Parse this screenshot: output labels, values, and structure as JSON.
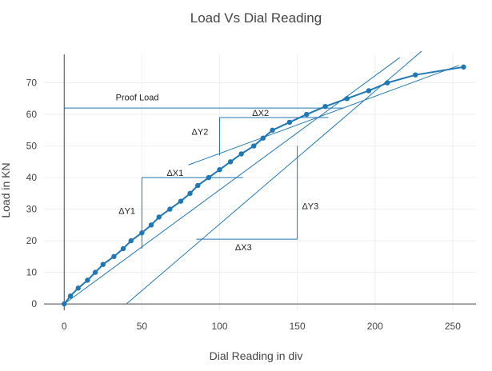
{
  "chart_data": {
    "type": "scatter",
    "title": "Load Vs Dial Reading",
    "xlabel": "Dial Reading in div",
    "ylabel": "Load in KN",
    "xlim": [
      -13,
      265
    ],
    "ylim": [
      -2,
      79
    ],
    "xticks": [
      0,
      50,
      100,
      150,
      200,
      250
    ],
    "yticks": [
      0,
      10,
      20,
      30,
      40,
      50,
      60,
      70
    ],
    "grid": true,
    "legend": "none",
    "colors": {
      "series": "#1f77b4",
      "lines": "#1f77b4",
      "grid": "#eeeeee",
      "axis": "#444444"
    },
    "series": [
      {
        "points": [
          [
            0,
            0
          ],
          [
            4,
            2.5
          ],
          [
            9,
            5
          ],
          [
            15,
            7.5
          ],
          [
            20,
            10
          ],
          [
            25,
            12.5
          ],
          [
            32,
            15
          ],
          [
            38,
            17.5
          ],
          [
            43,
            20
          ],
          [
            50,
            22.5
          ],
          [
            56,
            25
          ],
          [
            61,
            27.5
          ],
          [
            68,
            30
          ],
          [
            75,
            32.5
          ],
          [
            81,
            35
          ],
          [
            86,
            37.5
          ],
          [
            93,
            40
          ],
          [
            100,
            42.5
          ],
          [
            107,
            45
          ],
          [
            114,
            47.5
          ],
          [
            122,
            50
          ],
          [
            128,
            52.5
          ],
          [
            134,
            55
          ],
          [
            145,
            57.5
          ],
          [
            156,
            60
          ],
          [
            168,
            62.5
          ],
          [
            182,
            65
          ],
          [
            196,
            67.5
          ],
          [
            208,
            70
          ],
          [
            226,
            72.5
          ],
          [
            257,
            75
          ]
        ]
      }
    ],
    "lines": [
      {
        "from": [
          0,
          0
        ],
        "to": [
          216,
          78
        ]
      },
      {
        "from": [
          40,
          0
        ],
        "to": [
          230,
          80
        ]
      },
      {
        "from": [
          80,
          44
        ],
        "to": [
          254,
          75.5
        ]
      }
    ],
    "construction_lines": [
      {
        "from": [
          0,
          62
        ],
        "to": [
          180,
          62
        ]
      },
      {
        "from": [
          50,
          17.5
        ],
        "to": [
          50,
          40
        ]
      },
      {
        "from": [
          50,
          40
        ],
        "to": [
          115,
          40
        ]
      },
      {
        "from": [
          100,
          47
        ],
        "to": [
          100,
          59
        ]
      },
      {
        "from": [
          100,
          59
        ],
        "to": [
          170,
          59
        ]
      },
      {
        "from": [
          85,
          20.5
        ],
        "to": [
          150,
          20.5
        ]
      },
      {
        "from": [
          150,
          20.5
        ],
        "to": [
          150,
          50
        ]
      }
    ],
    "annotations": [
      {
        "text": "Proof Load",
        "x": 47,
        "y": 64.5,
        "anchor": "middle"
      },
      {
        "text": "ΔX2",
        "x": 121,
        "y": 59.5,
        "anchor": "start"
      },
      {
        "text": "ΔY2",
        "x": 82,
        "y": 53.5,
        "anchor": "start"
      },
      {
        "text": "ΔX1",
        "x": 66,
        "y": 40.5,
        "anchor": "start"
      },
      {
        "text": "ΔY1",
        "x": 35,
        "y": 28.5,
        "anchor": "start"
      },
      {
        "text": "ΔY3",
        "x": 153,
        "y": 30,
        "anchor": "start"
      },
      {
        "text": "ΔX3",
        "x": 110,
        "y": 17,
        "anchor": "start"
      }
    ]
  }
}
